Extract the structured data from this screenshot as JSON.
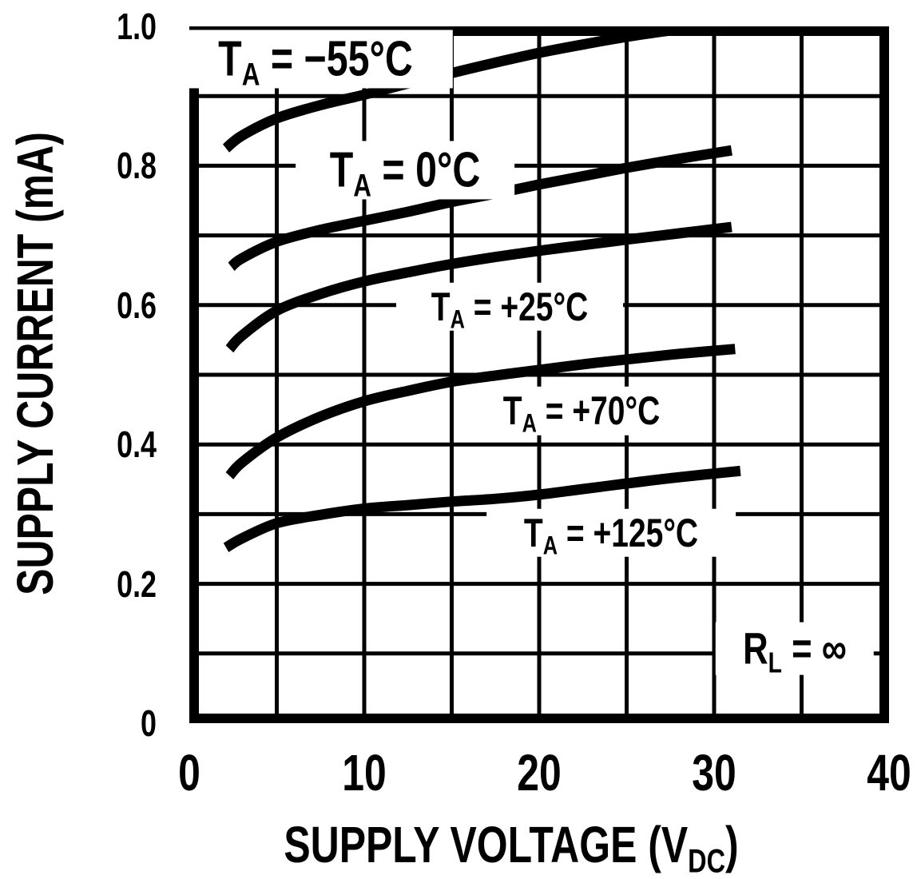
{
  "figure": {
    "background": "#ffffff",
    "ink_color": "#000000",
    "description": "Supply current vs supply voltage curves at five ambient temperatures"
  },
  "chart_data": {
    "type": "line",
    "title": "",
    "xlabel": "SUPPLY VOLTAGE (VDC)",
    "xlabel_parts": {
      "pre": "SUPPLY VOLTAGE (V",
      "sub": "DC",
      "post": ")"
    },
    "ylabel": "SUPPLY CURRENT (mA)",
    "xlim": [
      0,
      40
    ],
    "ylim": [
      0,
      1.0
    ],
    "x_ticks": [
      0,
      10,
      20,
      30,
      40
    ],
    "x_tick_labels": [
      "0",
      "10",
      "20",
      "30",
      "40"
    ],
    "y_ticks": [
      0,
      0.2,
      0.4,
      0.6,
      0.8,
      1.0
    ],
    "y_tick_labels": [
      "0",
      "0.2",
      "0.4",
      "0.6",
      "0.8",
      "1.0"
    ],
    "grid": "on",
    "grid_x_step": 5,
    "grid_y_step": 0.1,
    "legend_position": "inline curve labels",
    "annotation": {
      "text": "RL = ∞",
      "parts": {
        "pre": "R",
        "sub": "L",
        "post": " = ∞"
      },
      "at": [
        34.6,
        0.107
      ]
    },
    "series": [
      {
        "name": "TA = −55°C",
        "label_parts": {
          "pre": "T",
          "sub": "A",
          "post": " = −55°C"
        },
        "label_at": [
          7.2,
          0.953
        ],
        "points": [
          [
            2.1,
            0.825
          ],
          [
            3,
            0.843
          ],
          [
            5,
            0.868
          ],
          [
            7.5,
            0.887
          ],
          [
            10,
            0.902
          ],
          [
            12.5,
            0.918
          ],
          [
            15,
            0.933
          ],
          [
            17.5,
            0.948
          ],
          [
            20,
            0.962
          ],
          [
            22.5,
            0.974
          ],
          [
            25,
            0.985
          ],
          [
            27.5,
            0.994
          ],
          [
            30,
            1.0
          ],
          [
            30.8,
            1.001
          ]
        ]
      },
      {
        "name": "TA = 0°C",
        "label_parts": {
          "pre": "T",
          "sub": "A",
          "post": " = 0°C"
        },
        "label_at": [
          12.35,
          0.794
        ],
        "points": [
          [
            2.4,
            0.655
          ],
          [
            3,
            0.667
          ],
          [
            5,
            0.691
          ],
          [
            7.5,
            0.708
          ],
          [
            10,
            0.721
          ],
          [
            12.5,
            0.734
          ],
          [
            15,
            0.748
          ],
          [
            17.5,
            0.76
          ],
          [
            20,
            0.773
          ],
          [
            22.5,
            0.785
          ],
          [
            25,
            0.797
          ],
          [
            28,
            0.81
          ],
          [
            31,
            0.822
          ]
        ]
      },
      {
        "name": "TA = +25°C",
        "label_parts": {
          "pre": "T",
          "sub": "A",
          "post": " = +25°C"
        },
        "label_at": [
          18.3,
          0.598
        ],
        "points": [
          [
            2.3,
            0.537
          ],
          [
            3,
            0.556
          ],
          [
            5,
            0.592
          ],
          [
            7.5,
            0.616
          ],
          [
            10,
            0.634
          ],
          [
            12.5,
            0.647
          ],
          [
            15,
            0.659
          ],
          [
            17.5,
            0.669
          ],
          [
            20,
            0.678
          ],
          [
            22.5,
            0.686
          ],
          [
            25,
            0.694
          ],
          [
            28,
            0.703
          ],
          [
            31,
            0.712
          ]
        ]
      },
      {
        "name": "TA = +70°C",
        "label_parts": {
          "pre": "T",
          "sub": "A",
          "post": " = +70°C"
        },
        "label_at": [
          22.4,
          0.448
        ],
        "points": [
          [
            2.3,
            0.355
          ],
          [
            3,
            0.374
          ],
          [
            5,
            0.41
          ],
          [
            7.5,
            0.44
          ],
          [
            10,
            0.462
          ],
          [
            12.5,
            0.477
          ],
          [
            15,
            0.49
          ],
          [
            17.5,
            0.499
          ],
          [
            20,
            0.507
          ],
          [
            22.5,
            0.515
          ],
          [
            25,
            0.522
          ],
          [
            28,
            0.53
          ],
          [
            31.2,
            0.537
          ]
        ]
      },
      {
        "name": "TA = +125°C",
        "label_parts": {
          "pre": "T",
          "sub": "A",
          "post": " = +125°C"
        },
        "label_at": [
          24.1,
          0.273
        ],
        "points": [
          [
            2.1,
            0.252
          ],
          [
            3,
            0.265
          ],
          [
            5,
            0.287
          ],
          [
            7.5,
            0.299
          ],
          [
            10,
            0.308
          ],
          [
            12.5,
            0.313
          ],
          [
            15,
            0.318
          ],
          [
            17.5,
            0.322
          ],
          [
            20,
            0.328
          ],
          [
            22.5,
            0.336
          ],
          [
            25,
            0.344
          ],
          [
            28,
            0.353
          ],
          [
            31.5,
            0.362
          ]
        ]
      }
    ]
  }
}
